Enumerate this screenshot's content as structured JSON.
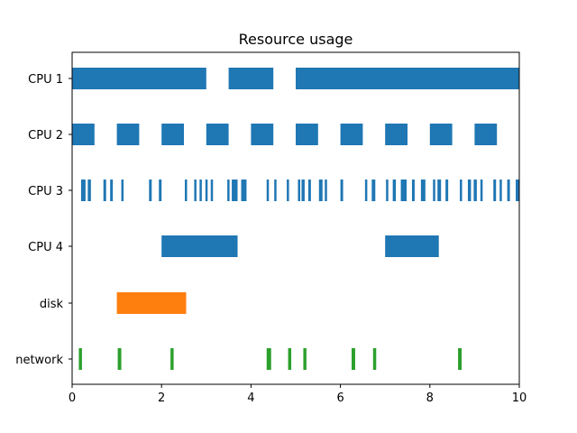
{
  "chart_data": {
    "type": "broken_barh",
    "title": "Resource usage",
    "xlabel": "",
    "ylabel": "",
    "xlim": [
      0,
      10
    ],
    "x_ticks": [
      "0",
      "2",
      "4",
      "6",
      "8",
      "10"
    ],
    "grid": false,
    "categories": [
      "CPU 1",
      "CPU 2",
      "CPU 3",
      "CPU 4",
      "disk",
      "network"
    ],
    "colors": {
      "CPU 1": "#1f77b4",
      "CPU 2": "#1f77b4",
      "CPU 3": "#1f77b4",
      "CPU 4": "#1f77b4",
      "disk": "#ff7f0e",
      "network": "#2ca02c"
    },
    "series": [
      {
        "category": "CPU 1",
        "intervals": [
          [
            0,
            3
          ],
          [
            3.5,
            4.5
          ],
          [
            5,
            10
          ]
        ]
      },
      {
        "category": "CPU 2",
        "intervals": [
          [
            0,
            0.5
          ],
          [
            1,
            1.5
          ],
          [
            2,
            2.5
          ],
          [
            3,
            3.5
          ],
          [
            4,
            4.5
          ],
          [
            5,
            5.5
          ],
          [
            6,
            6.5
          ],
          [
            7,
            7.5
          ],
          [
            8,
            8.5
          ],
          [
            9,
            9.5
          ]
        ]
      },
      {
        "category": "CPU 3",
        "intervals": [
          [
            0.2,
            0.3
          ],
          [
            0.35,
            0.42
          ],
          [
            0.7,
            0.76
          ],
          [
            0.85,
            0.91
          ],
          [
            1.1,
            1.14
          ],
          [
            1.72,
            1.78
          ],
          [
            1.94,
            2.0
          ],
          [
            2.52,
            2.57
          ],
          [
            2.73,
            2.78
          ],
          [
            2.85,
            2.9
          ],
          [
            2.98,
            3.03
          ],
          [
            3.1,
            3.15
          ],
          [
            3.47,
            3.52
          ],
          [
            3.57,
            3.7
          ],
          [
            3.78,
            3.9
          ],
          [
            4.35,
            4.4
          ],
          [
            4.52,
            4.57
          ],
          [
            4.8,
            4.85
          ],
          [
            5.05,
            5.1
          ],
          [
            5.13,
            5.2
          ],
          [
            5.28,
            5.34
          ],
          [
            5.52,
            5.6
          ],
          [
            5.65,
            5.7
          ],
          [
            6.0,
            6.06
          ],
          [
            6.55,
            6.6
          ],
          [
            6.7,
            6.78
          ],
          [
            7.02,
            7.07
          ],
          [
            7.17,
            7.24
          ],
          [
            7.35,
            7.48
          ],
          [
            7.6,
            7.66
          ],
          [
            7.8,
            7.9
          ],
          [
            8.07,
            8.12
          ],
          [
            8.17,
            8.25
          ],
          [
            8.35,
            8.41
          ],
          [
            8.67,
            8.72
          ],
          [
            8.85,
            8.92
          ],
          [
            8.98,
            9.05
          ],
          [
            9.13,
            9.18
          ],
          [
            9.42,
            9.48
          ],
          [
            9.56,
            9.61
          ],
          [
            9.73,
            9.79
          ],
          [
            9.92,
            10.0
          ]
        ]
      },
      {
        "category": "CPU 4",
        "intervals": [
          [
            2,
            3.7
          ],
          [
            7,
            8.2
          ]
        ]
      },
      {
        "category": "disk",
        "intervals": [
          [
            1,
            2.55
          ]
        ]
      },
      {
        "category": "network",
        "intervals": [
          [
            0.15,
            0.22
          ],
          [
            1.02,
            1.1
          ],
          [
            2.2,
            2.27
          ],
          [
            4.35,
            4.45
          ],
          [
            4.83,
            4.9
          ],
          [
            5.17,
            5.24
          ],
          [
            6.25,
            6.33
          ],
          [
            6.73,
            6.8
          ],
          [
            8.63,
            8.71
          ]
        ]
      }
    ]
  }
}
